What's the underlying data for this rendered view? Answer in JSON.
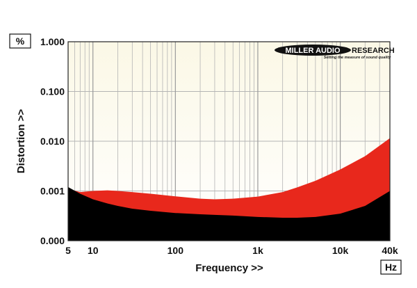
{
  "chart_data": {
    "type": "area",
    "xlabel": "Frequency >>",
    "ylabel": "Distortion >>",
    "x_unit": "Hz",
    "y_unit": "%",
    "x_scale": "log",
    "y_scale": "log-ish (0.000 at baseline)",
    "xlim": [
      5,
      40000
    ],
    "ylim": [
      0,
      1
    ],
    "x_ticks": [
      {
        "value": 5,
        "label": "5"
      },
      {
        "value": 10,
        "label": "10"
      },
      {
        "value": 100,
        "label": "100"
      },
      {
        "value": 1000,
        "label": "1k"
      },
      {
        "value": 10000,
        "label": "10k"
      },
      {
        "value": 40000,
        "label": "40k"
      }
    ],
    "y_ticks": [
      {
        "value": 1.0,
        "label": "1.000"
      },
      {
        "value": 0.1,
        "label": "0.100"
      },
      {
        "value": 0.01,
        "label": "0.010"
      },
      {
        "value": 0.001,
        "label": "0.001"
      },
      {
        "value": 0.0,
        "label": "0.000"
      }
    ],
    "grid": true,
    "colors": {
      "red_area": "#e8281c",
      "black_area": "#000000",
      "background_top": "#fbf8e6",
      "background_bottom": "#ffffff",
      "grid": "#b4b4b4"
    },
    "series": [
      {
        "color": "#e8281c",
        "x": [
          5,
          7,
          10,
          15,
          20,
          30,
          50,
          100,
          200,
          300,
          500,
          1000,
          2000,
          3000,
          5000,
          10000,
          20000,
          40000
        ],
        "y": [
          0.0011,
          0.00095,
          0.001,
          0.00103,
          0.001,
          0.00095,
          0.00088,
          0.00078,
          0.0007,
          0.00068,
          0.0007,
          0.00077,
          0.00095,
          0.00118,
          0.0016,
          0.0027,
          0.005,
          0.0115
        ]
      },
      {
        "color": "#000000",
        "x": [
          5,
          7,
          10,
          15,
          20,
          30,
          50,
          100,
          200,
          300,
          500,
          1000,
          2000,
          3000,
          5000,
          10000,
          20000,
          40000
        ],
        "y": [
          0.0012,
          0.00088,
          0.00068,
          0.00056,
          0.0005,
          0.00044,
          0.0004,
          0.00036,
          0.00034,
          0.00033,
          0.00032,
          0.0003,
          0.00029,
          0.00029,
          0.0003,
          0.00035,
          0.0005,
          0.001
        ]
      }
    ]
  },
  "logo": {
    "main": "MILLER AUDIO",
    "side": "RESEARCH",
    "tagline": "Setting the measure of sound quality"
  }
}
